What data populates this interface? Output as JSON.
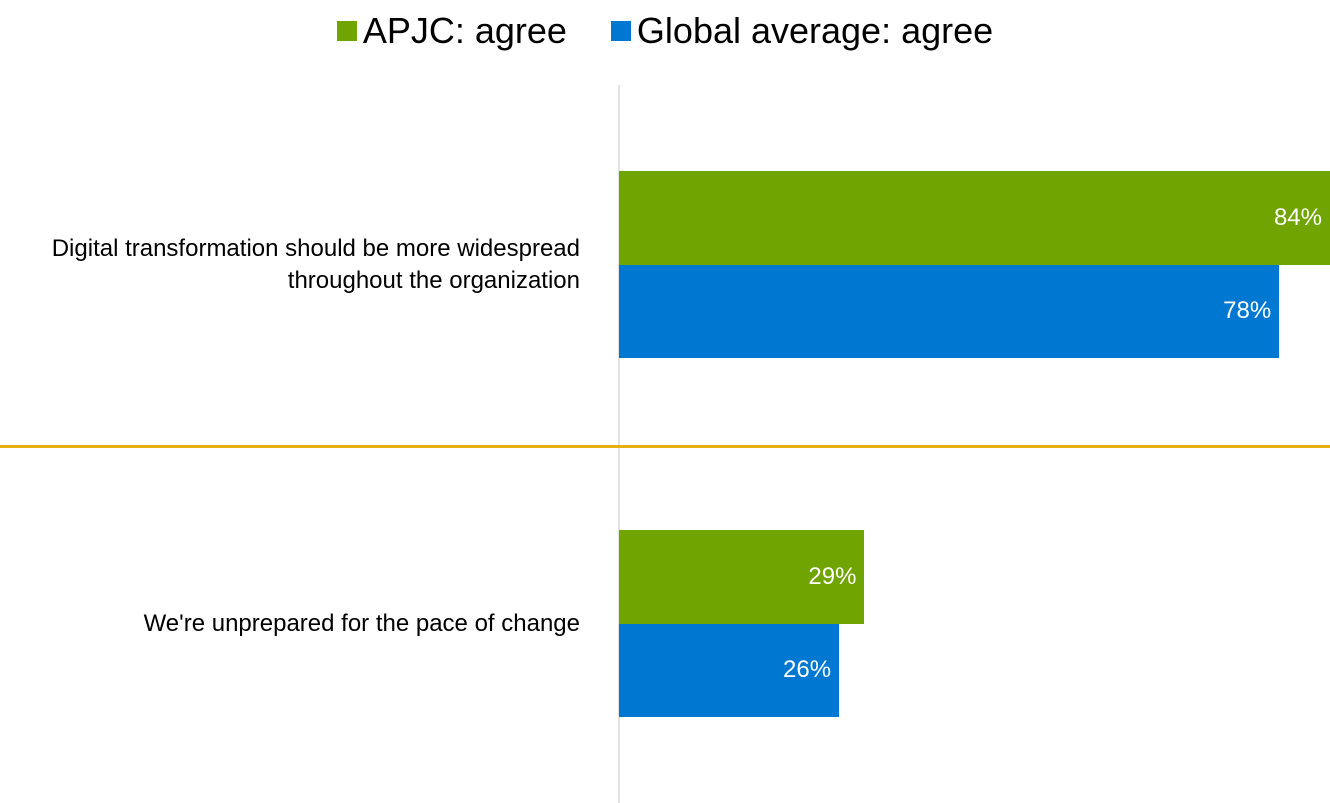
{
  "chart_data": {
    "type": "bar",
    "orientation": "horizontal",
    "categories": [
      "Digital transformation should be more widespread throughout the organization",
      "We're unprepared for the pace of change"
    ],
    "series": [
      {
        "name": "APJC: agree",
        "color": "#70a400",
        "values": [
          84,
          29
        ],
        "value_labels": [
          "84%",
          "29%"
        ]
      },
      {
        "name": "Global average: agree",
        "color": "#0078d2",
        "values": [
          78,
          26
        ],
        "value_labels": [
          "78%",
          "26%"
        ]
      }
    ],
    "xlim": [
      0,
      84
    ],
    "legend": "top"
  }
}
